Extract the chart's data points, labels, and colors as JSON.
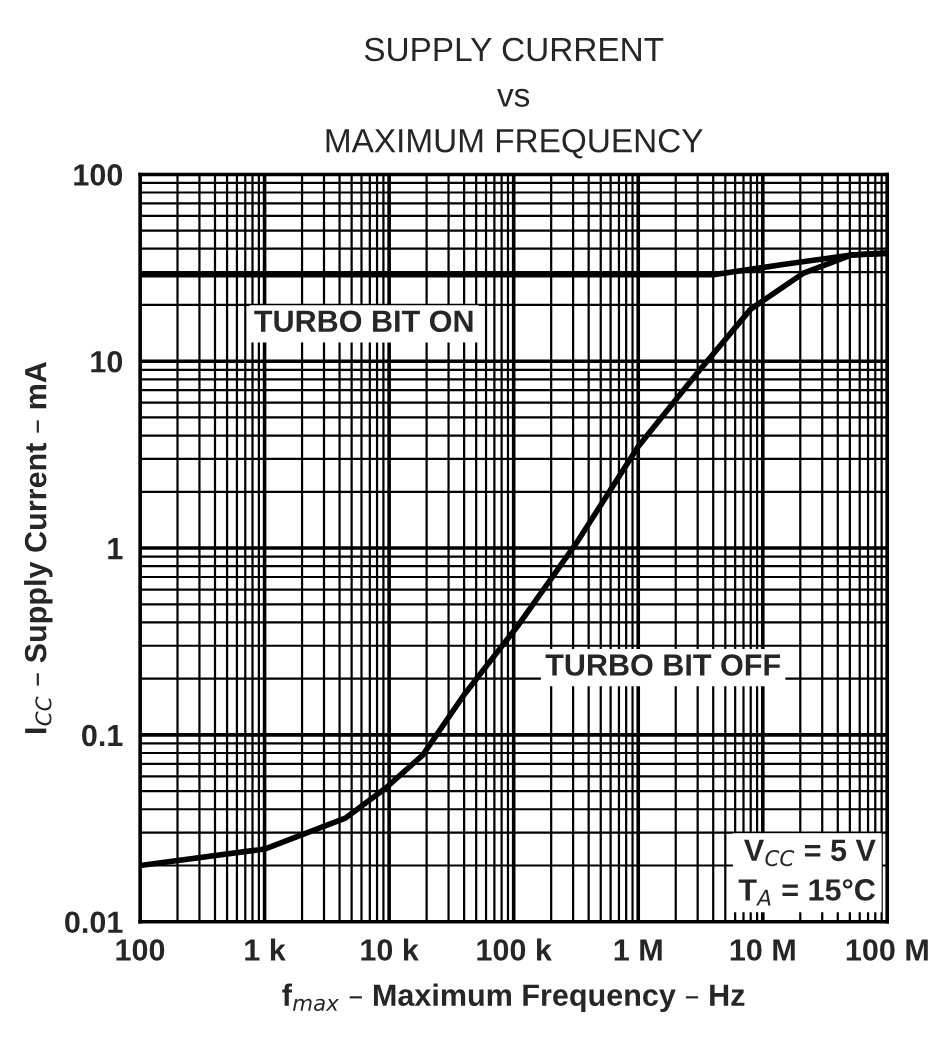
{
  "chart_data": {
    "type": "line",
    "title": "SUPPLY CURRENT\nvs\nMAXIMUM FREQUENCY",
    "xlabel": "f$_{max}$ – Maximum Frequency – Hz",
    "ylabel": "I$_{CC}$ – Supply Current – mA",
    "log": "xy",
    "grid": true,
    "legend": false,
    "marker": "none",
    "line_style": "solid",
    "xlim": [
      100,
      100000000
    ],
    "ylim": [
      0.01,
      100
    ],
    "xticks": [
      {
        "value": 100,
        "label": "100"
      },
      {
        "value": 1000,
        "label": "1 k"
      },
      {
        "value": 10000,
        "label": "10 k"
      },
      {
        "value": 100000,
        "label": "100 k"
      },
      {
        "value": 1000000,
        "label": "1 M"
      },
      {
        "value": 10000000,
        "label": "10 M"
      },
      {
        "value": 100000000,
        "label": "100 M"
      }
    ],
    "yticks": [
      0.01,
      0.1,
      1,
      10,
      100
    ],
    "series": [
      {
        "name": "TURBO BIT ON",
        "color": "#000000",
        "x": [
          100,
          1000,
          10000,
          100000,
          1000000,
          4000000,
          15000000,
          51000000,
          100000000
        ],
        "values": [
          29,
          29,
          29,
          29,
          29,
          29,
          33,
          37,
          38
        ]
      },
      {
        "name": "TURBO BIT OFF",
        "color": "#000000",
        "x": [
          100,
          1000,
          4500,
          9400,
          18600,
          40000,
          110000,
          330000,
          1000000,
          3000000,
          8000000,
          21000000,
          51000000,
          100000000
        ],
        "values": [
          0.02,
          0.0245,
          0.036,
          0.052,
          0.078,
          0.164,
          0.39,
          1.1,
          3.5,
          8.7,
          19,
          29.5,
          37,
          37.7
        ]
      }
    ],
    "annotations": [
      "V$_{CC}$ = 5 V\nT$_{A}$ = 15°C"
    ]
  }
}
